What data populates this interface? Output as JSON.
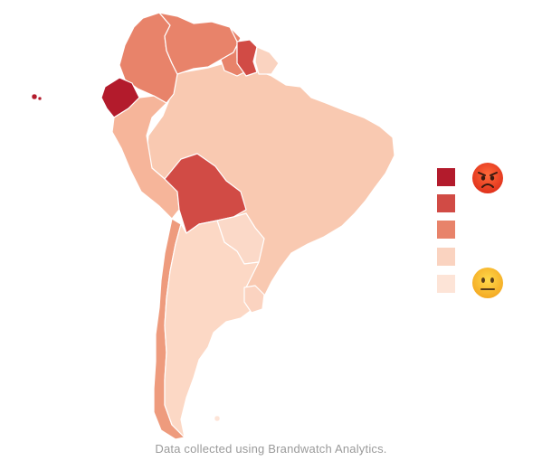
{
  "footer": {
    "credit": "Data collected using Brandwatch Analytics."
  },
  "legend": {
    "levels": [
      {
        "color": "#b31b2c",
        "level": 5
      },
      {
        "color": "#d14b45",
        "level": 4
      },
      {
        "color": "#e8836a",
        "level": 3
      },
      {
        "color": "#fad3c0",
        "level": 2
      },
      {
        "color": "#fde4d7",
        "level": 1
      }
    ],
    "top_icon": "angry-face-icon",
    "bottom_icon": "neutral-face-icon"
  },
  "countries": {
    "colombia": "#e8836a",
    "venezuela": "#e8836a",
    "guyana": "#e8836a",
    "suriname": "#d14b45",
    "french_guiana": "#fad3c0",
    "ecuador": "#b31b2c",
    "galapagos": "#b31b2c",
    "peru": "#f6b59a",
    "brazil": "#f9c9b1",
    "bolivia": "#d14b45",
    "paraguay": "#fbd9c8",
    "chile": "#ee9b7d",
    "argentina": "#fcd8c5",
    "uruguay": "#fbd3c0",
    "falklands": "#fde4d7"
  }
}
